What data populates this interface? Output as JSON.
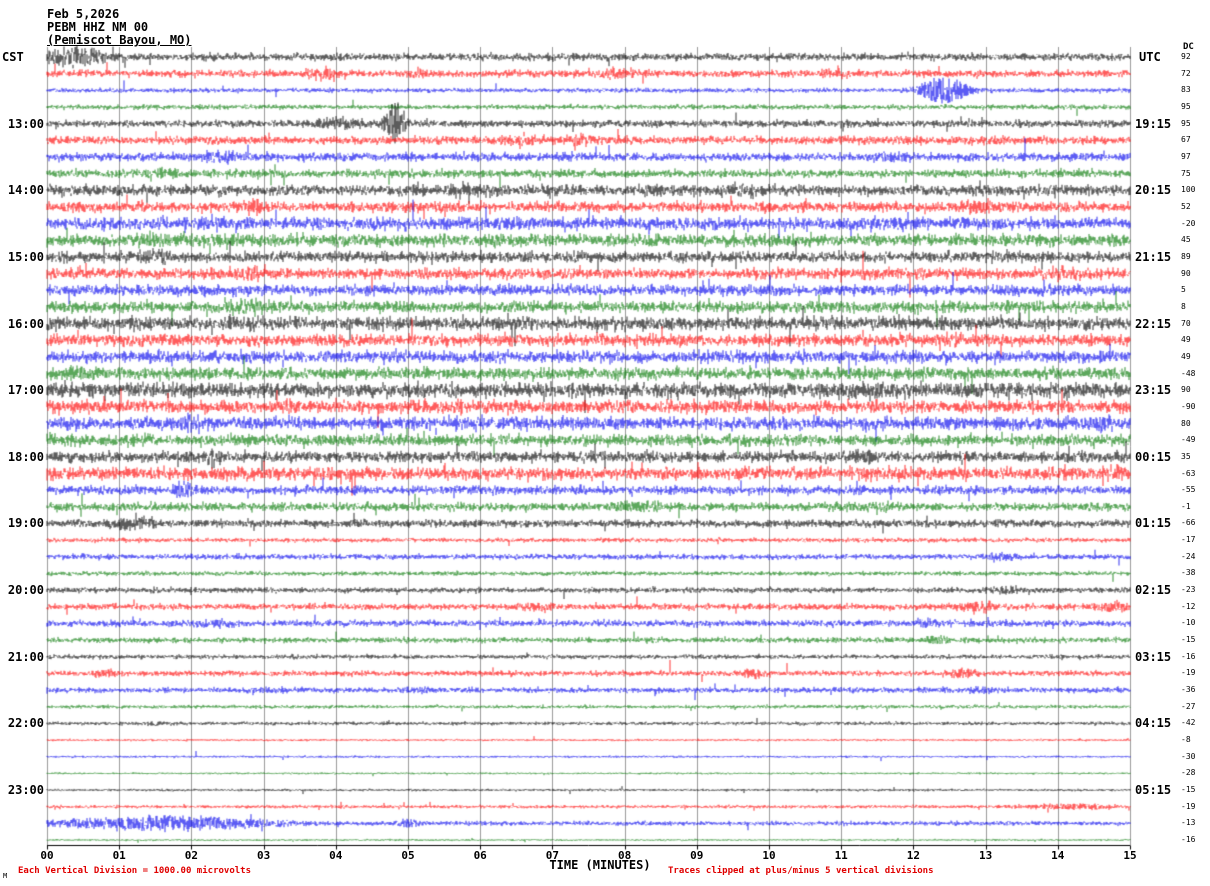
{
  "header": {
    "date": "Feb 5,2026",
    "station": "PEBM HHZ NM 00",
    "location": "(Pemiscot Bayou, MO)"
  },
  "axes": {
    "left_label": "CST",
    "right_label": "UTC",
    "dc_label": "DC",
    "x_title": "TIME (MINUTES)",
    "x_ticks": [
      "00",
      "01",
      "02",
      "03",
      "04",
      "05",
      "06",
      "07",
      "08",
      "09",
      "10",
      "11",
      "12",
      "13",
      "14",
      "15"
    ]
  },
  "footer": {
    "left_note": "Each Vertical Division = 1000.00 microvolts",
    "right_note": "Traces clipped at plus/minus 5 vertical divisions",
    "corner_mark": "M"
  },
  "chart_data": {
    "type": "line",
    "title": "PEBM HHZ NM 00 (Pemiscot Bayou, MO) helicorder, Feb 5,2026",
    "x_range_minutes": [
      0,
      15
    ],
    "minutes_per_row": 15,
    "rows": 48,
    "row_start_cst": "12:00",
    "grid": true,
    "colors": {
      "black": "#000000",
      "red": "#ff0000",
      "blue": "#0000ee",
      "green": "#007700"
    },
    "hour_rows": [
      {
        "row": 4,
        "cst": "13:00",
        "utc": "19:15"
      },
      {
        "row": 8,
        "cst": "14:00",
        "utc": "20:15"
      },
      {
        "row": 12,
        "cst": "15:00",
        "utc": "21:15"
      },
      {
        "row": 16,
        "cst": "16:00",
        "utc": "22:15"
      },
      {
        "row": 20,
        "cst": "17:00",
        "utc": "23:15"
      },
      {
        "row": 24,
        "cst": "18:00",
        "utc": "00:15"
      },
      {
        "row": 28,
        "cst": "19:00",
        "utc": "01:15"
      },
      {
        "row": 32,
        "cst": "20:00",
        "utc": "02:15"
      },
      {
        "row": 36,
        "cst": "21:00",
        "utc": "03:15"
      },
      {
        "row": 40,
        "cst": "22:00",
        "utc": "04:15"
      },
      {
        "row": 44,
        "cst": "23:00",
        "utc": "05:15"
      }
    ],
    "traces": [
      {
        "color": "black",
        "dc": 92,
        "amp": 2.8,
        "events": [
          {
            "t": 0.35,
            "w": 0.35,
            "a": 9
          }
        ]
      },
      {
        "color": "red",
        "dc": 72,
        "amp": 2.6,
        "events": [
          {
            "t": 3.8,
            "w": 0.15,
            "a": 6
          },
          {
            "t": 5.1,
            "w": 0.12,
            "a": 5
          },
          {
            "t": 7.9,
            "w": 0.15,
            "a": 6
          },
          {
            "t": 10.9,
            "w": 0.12,
            "a": 5
          }
        ]
      },
      {
        "color": "blue",
        "dc": 83,
        "amp": 1.6,
        "events": [
          {
            "t": 12.4,
            "w": 0.25,
            "a": 14
          }
        ]
      },
      {
        "color": "green",
        "dc": 95,
        "amp": 1.8,
        "events": []
      },
      {
        "color": "black",
        "dc": 95,
        "amp": 2.6,
        "events": [
          {
            "t": 4.0,
            "w": 0.35,
            "a": 5
          },
          {
            "t": 4.82,
            "w": 0.1,
            "a": 22
          }
        ]
      },
      {
        "color": "red",
        "dc": 67,
        "amp": 3.0,
        "events": [
          {
            "t": 6.6,
            "w": 0.2,
            "a": 5
          },
          {
            "t": 7.4,
            "w": 0.15,
            "a": 5
          },
          {
            "t": 13.1,
            "w": 0.1,
            "a": 5
          }
        ]
      },
      {
        "color": "blue",
        "dc": 97,
        "amp": 3.0,
        "events": [
          {
            "t": 2.4,
            "w": 0.3,
            "a": 5
          },
          {
            "t": 11.7,
            "w": 0.2,
            "a": 4
          }
        ]
      },
      {
        "color": "green",
        "dc": 75,
        "amp": 3.0,
        "events": [
          {
            "t": 1.6,
            "w": 0.2,
            "a": 4
          }
        ]
      },
      {
        "color": "black",
        "dc": 100,
        "amp": 4.0,
        "events": [
          {
            "t": 5.8,
            "w": 0.3,
            "a": 4
          },
          {
            "t": 9.6,
            "w": 0.2,
            "a": 4
          }
        ]
      },
      {
        "color": "red",
        "dc": 52,
        "amp": 3.8,
        "events": [
          {
            "t": 2.9,
            "w": 0.12,
            "a": 7
          },
          {
            "t": 12.9,
            "w": 0.2,
            "a": 5
          }
        ]
      },
      {
        "color": "blue",
        "dc": -20,
        "amp": 4.5,
        "events": [
          {
            "t": 2.3,
            "w": 0.3,
            "a": 5
          },
          {
            "t": 11.5,
            "w": 0.3,
            "a": 4
          }
        ]
      },
      {
        "color": "green",
        "dc": 45,
        "amp": 4.5,
        "events": [
          {
            "t": 1.6,
            "w": 0.25,
            "a": 6
          },
          {
            "t": 2.4,
            "w": 0.2,
            "a": 5
          }
        ]
      },
      {
        "color": "black",
        "dc": 89,
        "amp": 4.0,
        "events": [
          {
            "t": 1.5,
            "w": 0.2,
            "a": 5
          }
        ]
      },
      {
        "color": "red",
        "dc": 90,
        "amp": 4.0,
        "events": [
          {
            "t": 2.8,
            "w": 0.2,
            "a": 5
          },
          {
            "t": 14.1,
            "w": 0.2,
            "a": 5
          }
        ]
      },
      {
        "color": "blue",
        "dc": 5,
        "amp": 4.0,
        "events": []
      },
      {
        "color": "green",
        "dc": 8,
        "amp": 4.2,
        "events": [
          {
            "t": 2.7,
            "w": 0.25,
            "a": 6
          }
        ]
      },
      {
        "color": "black",
        "dc": 70,
        "amp": 4.8,
        "events": [
          {
            "t": 2.7,
            "w": 0.2,
            "a": 5
          }
        ]
      },
      {
        "color": "red",
        "dc": 49,
        "amp": 4.5,
        "events": [
          {
            "t": 12.5,
            "w": 0.15,
            "a": 6
          }
        ]
      },
      {
        "color": "blue",
        "dc": 49,
        "amp": 4.5,
        "events": []
      },
      {
        "color": "green",
        "dc": -48,
        "amp": 4.5,
        "events": [
          {
            "t": 0.3,
            "w": 0.2,
            "a": 5
          }
        ]
      },
      {
        "color": "black",
        "dc": 90,
        "amp": 5.5,
        "events": [
          {
            "t": 11.2,
            "w": 0.2,
            "a": 6
          }
        ]
      },
      {
        "color": "red",
        "dc": -90,
        "amp": 4.8,
        "events": []
      },
      {
        "color": "blue",
        "dc": 80,
        "amp": 4.8,
        "events": [
          {
            "t": 2.0,
            "w": 0.25,
            "a": 6
          },
          {
            "t": 14.6,
            "w": 0.2,
            "a": 6
          }
        ]
      },
      {
        "color": "green",
        "dc": -49,
        "amp": 4.2,
        "events": []
      },
      {
        "color": "black",
        "dc": 35,
        "amp": 4.0,
        "events": [
          {
            "t": 2.3,
            "w": 0.1,
            "a": 9
          },
          {
            "t": 11.3,
            "w": 0.15,
            "a": 6
          }
        ]
      },
      {
        "color": "red",
        "dc": -63,
        "amp": 4.8,
        "events": [
          {
            "t": 14.9,
            "w": 0.2,
            "a": 6
          }
        ]
      },
      {
        "color": "blue",
        "dc": -55,
        "amp": 3.2,
        "events": [
          {
            "t": 1.9,
            "w": 0.12,
            "a": 9
          }
        ]
      },
      {
        "color": "green",
        "dc": -1,
        "amp": 3.0,
        "events": [
          {
            "t": 8.2,
            "w": 0.3,
            "a": 5
          },
          {
            "t": 11.3,
            "w": 0.3,
            "a": 4
          }
        ]
      },
      {
        "color": "black",
        "dc": -66,
        "amp": 2.8,
        "events": [
          {
            "t": 1.2,
            "w": 0.25,
            "a": 7
          }
        ]
      },
      {
        "color": "red",
        "dc": -17,
        "amp": 1.6,
        "events": []
      },
      {
        "color": "blue",
        "dc": -24,
        "amp": 2.0,
        "events": [
          {
            "t": 13.2,
            "w": 0.2,
            "a": 3
          }
        ]
      },
      {
        "color": "green",
        "dc": -38,
        "amp": 1.6,
        "events": []
      },
      {
        "color": "black",
        "dc": -23,
        "amp": 2.0,
        "events": [
          {
            "t": 13.2,
            "w": 0.2,
            "a": 4
          }
        ]
      },
      {
        "color": "red",
        "dc": -12,
        "amp": 2.4,
        "events": [
          {
            "t": 6.8,
            "w": 0.15,
            "a": 4
          },
          {
            "t": 12.9,
            "w": 0.2,
            "a": 5
          },
          {
            "t": 14.8,
            "w": 0.2,
            "a": 5
          }
        ]
      },
      {
        "color": "blue",
        "dc": -10,
        "amp": 2.4,
        "events": [
          {
            "t": 2.3,
            "w": 0.2,
            "a": 4
          },
          {
            "t": 12.2,
            "w": 0.15,
            "a": 4
          }
        ]
      },
      {
        "color": "green",
        "dc": -15,
        "amp": 2.0,
        "events": [
          {
            "t": 12.3,
            "w": 0.15,
            "a": 4
          }
        ]
      },
      {
        "color": "black",
        "dc": -16,
        "amp": 1.6,
        "events": []
      },
      {
        "color": "red",
        "dc": -19,
        "amp": 2.0,
        "events": [
          {
            "t": 0.8,
            "w": 0.1,
            "a": 4
          },
          {
            "t": 9.8,
            "w": 0.15,
            "a": 4
          },
          {
            "t": 12.7,
            "w": 0.15,
            "a": 5
          }
        ]
      },
      {
        "color": "blue",
        "dc": -36,
        "amp": 2.0,
        "events": [
          {
            "t": 3.0,
            "w": 0.2,
            "a": 3
          },
          {
            "t": 5.2,
            "w": 0.15,
            "a": 3
          },
          {
            "t": 13.0,
            "w": 0.15,
            "a": 3
          }
        ]
      },
      {
        "color": "green",
        "dc": -27,
        "amp": 1.3,
        "events": []
      },
      {
        "color": "black",
        "dc": -42,
        "amp": 1.3,
        "events": [
          {
            "t": 1.5,
            "w": 0.2,
            "a": 2
          }
        ]
      },
      {
        "color": "red",
        "dc": -8,
        "amp": 0.8,
        "events": []
      },
      {
        "color": "blue",
        "dc": -30,
        "amp": 0.8,
        "events": []
      },
      {
        "color": "green",
        "dc": -28,
        "amp": 0.7,
        "events": []
      },
      {
        "color": "black",
        "dc": -15,
        "amp": 0.9,
        "events": []
      },
      {
        "color": "red",
        "dc": -19,
        "amp": 1.2,
        "events": [
          {
            "t": 14.2,
            "w": 0.5,
            "a": 3
          }
        ]
      },
      {
        "color": "blue",
        "dc": -13,
        "amp": 1.6,
        "events": [
          {
            "t": 1.6,
            "w": 1.2,
            "a": 7
          },
          {
            "t": 5.0,
            "w": 0.1,
            "a": 5
          }
        ]
      },
      {
        "color": "green",
        "dc": -16,
        "amp": 0.7,
        "events": []
      }
    ]
  }
}
